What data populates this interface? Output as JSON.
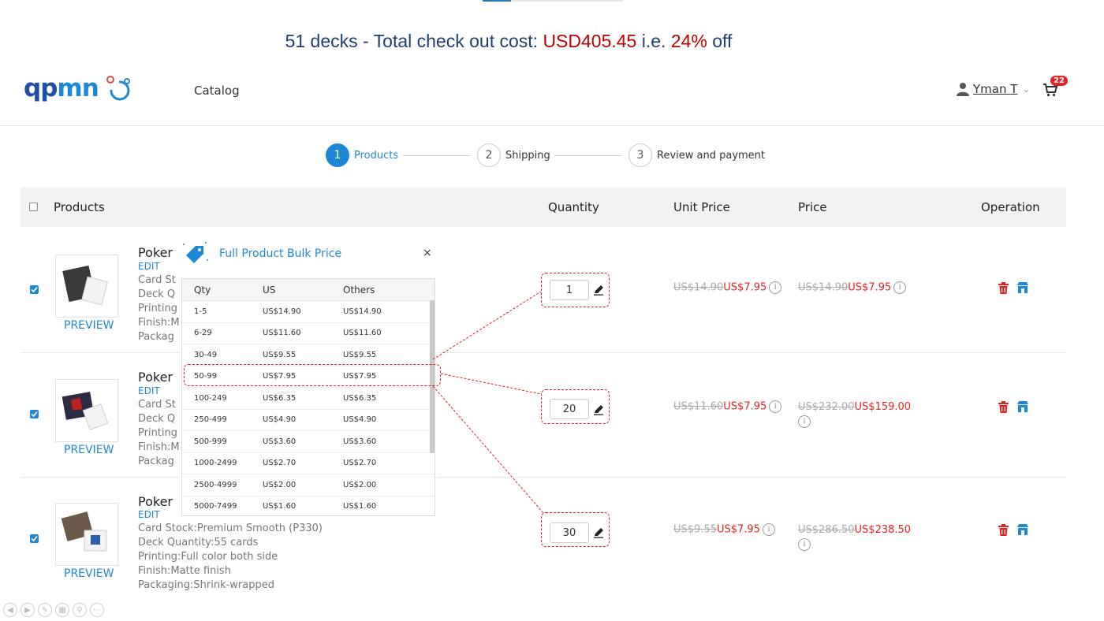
{
  "caption": {
    "part1": "51 decks - Total check out cost: ",
    "total": "USD405.45",
    "part2": " i.e. ",
    "discount": "24%",
    "part3": " off"
  },
  "header": {
    "logo_text_a": "qp",
    "logo_text_b": "mn",
    "nav_catalog": "Catalog",
    "user_name": "Yman T",
    "cart_count": "22"
  },
  "steps": [
    {
      "num": "1",
      "label": "Products",
      "active": true
    },
    {
      "num": "2",
      "label": "Shipping",
      "active": false
    },
    {
      "num": "3",
      "label": "Review and payment",
      "active": false
    }
  ],
  "table_header": {
    "products": "Products",
    "quantity": "Quantity",
    "unit_price": "Unit Price",
    "price": "Price",
    "operation": "Operation"
  },
  "rows": [
    {
      "name": "Poker",
      "edit": "EDIT",
      "specs": [
        "Card St",
        "Deck Q",
        "Printing",
        "Finish:M",
        "Packag"
      ],
      "preview": "PREVIEW",
      "quantity": "1",
      "unit_old": "US$14.90",
      "unit_new": "US$7.95",
      "price_old": "US$14.90",
      "price_new": "US$7.95"
    },
    {
      "name": "Poker",
      "edit": "EDIT",
      "specs": [
        "Card St",
        "Deck Q",
        "Printing",
        "Finish:M",
        "Packag"
      ],
      "preview": "PREVIEW",
      "quantity": "20",
      "unit_old": "US$11.60",
      "unit_new": "US$7.95",
      "price_old": "US$232.00",
      "price_new": "US$159.00"
    },
    {
      "name": "Poker",
      "edit": "EDIT",
      "specs": [
        "Card Stock:Premium Smooth (P330)",
        "Deck Quantity:55 cards",
        "Printing:Full color both side",
        "Finish:Matte finish",
        "Packaging:Shrink-wrapped"
      ],
      "preview": "PREVIEW",
      "quantity": "30",
      "unit_old": "US$9.55",
      "unit_new": "US$7.95",
      "price_old": "US$286.50",
      "price_new": "US$238.50"
    }
  ],
  "bulk_popup": {
    "title": "Full Product Bulk Price",
    "close": "×",
    "columns": [
      "Qty",
      "US",
      "Others"
    ],
    "rows": [
      [
        "1-5",
        "US$14.90",
        "US$14.90"
      ],
      [
        "6-29",
        "US$11.60",
        "US$11.60"
      ],
      [
        "30-49",
        "US$9.55",
        "US$9.55"
      ],
      [
        "50-99",
        "US$7.95",
        "US$7.95"
      ],
      [
        "100-249",
        "US$6.35",
        "US$6.35"
      ],
      [
        "250-499",
        "US$4.90",
        "US$4.90"
      ],
      [
        "500-999",
        "US$3.60",
        "US$3.60"
      ],
      [
        "1000-2499",
        "US$2.70",
        "US$2.70"
      ],
      [
        "2500-4999",
        "US$2.00",
        "US$2.00"
      ],
      [
        "5000-7499",
        "US$1.60",
        "US$1.60"
      ]
    ]
  },
  "colors": {
    "accent": "#1f88d6",
    "red": "#e02424",
    "caption_blue": "#1f3f70",
    "caption_red": "#c00000"
  }
}
